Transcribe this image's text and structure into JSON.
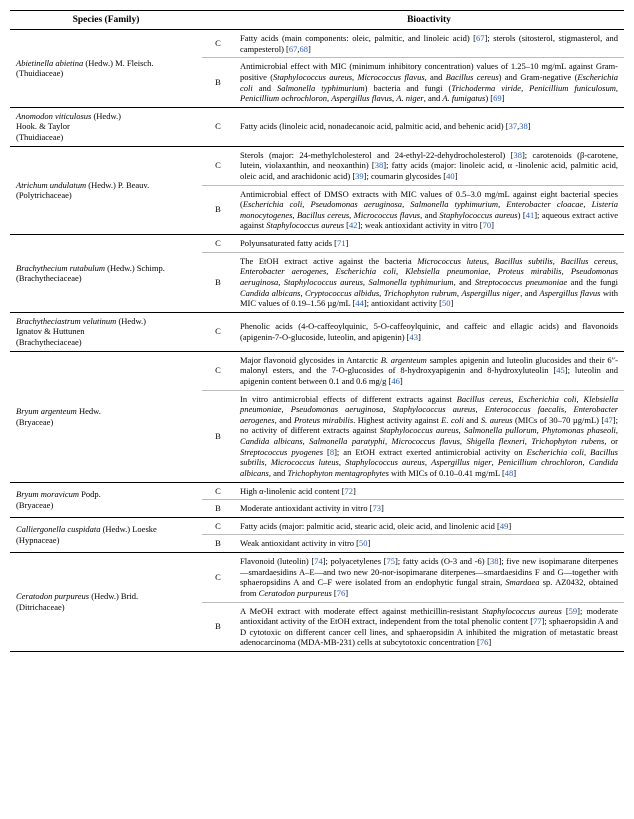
{
  "columns": {
    "species": "Species (Family)",
    "bioactivity": "Bioactivity"
  },
  "species": [
    {
      "name_html": "<span class='ital'>Abietinella abietina</span> <span class='auth'>(Hedw.) M. Fleisch.</span><br><span class='fam'>(Thuidiaceae)</span>",
      "rows": [
        {
          "type": "C",
          "text_html": "Fatty acids (main components: oleic, palmitic, and linoleic acid) [<span class='ref'>67</span>]; sterols (sitosterol, stigmasterol, and campesterol) [<span class='ref'>67</span>,<span class='ref'>68</span>]"
        },
        {
          "type": "B",
          "text_html": "Antimicrobial effect with MIC (minimum inhibitory concentration) values of 1.25–10 mg/mL against Gram-positive (<span class='ital'>Staphylococcus aureus</span>, <span class='ital'>Micrococcus flavus</span>, and <span class='ital'>Bacillus cereus</span>) and Gram-negative (<span class='ital'>Escherichia coli</span> and <span class='ital'>Salmonella typhimurium</span>) bacteria and fungi (<span class='ital'>Trichoderma viride</span>, <span class='ital'>Penicillium funiculosum</span>, <span class='ital'>Penicillium ochrochloron</span>, <span class='ital'>Aspergillus flavus</span>, <span class='ital'>A. niger</span>, and <span class='ital'>A. fumigatus</span>) [<span class='ref'>69</span>]"
        }
      ]
    },
    {
      "name_html": "<span class='ital'>Anomodon viticulosus</span> <span class='auth'>(Hedw.)<br>Hook. &amp; Taylor</span><br><span class='fam'>(Thuidiaceae)</span>",
      "rows": [
        {
          "type": "C",
          "text_html": "Fatty acids (linoleic acid, nonadecanoic acid, palmitic acid, and behenic acid) [<span class='ref'>37</span>,<span class='ref'>38</span>]"
        }
      ]
    },
    {
      "name_html": "<span class='ital'>Atrichum undulatum</span> <span class='auth'>(Hedw.) P. Beauv.</span><br><span class='fam'>(Polytrichaceae)</span>",
      "rows": [
        {
          "type": "C",
          "text_html": "Sterols (major: 24-methylcholesterol and 24-ethyl-22-dehydrocholesterol) [<span class='ref'>38</span>]; carotenoids (β-carotene, lutein, violaxanthin, and neoxanthin) [<span class='ref'>38</span>]; fatty acids (major: linoleic acid, α -linolenic acid, palmitic acid, oleic acid, and arachidonic acid) [<span class='ref'>39</span>]; coumarin glycosides [<span class='ref'>40</span>]"
        },
        {
          "type": "B",
          "text_html": "Antimicrobial effect of DMSO extracts with MIC values of 0.5–3.0 mg/mL against eight bacterial species (<span class='ital'>Escherichia coli</span>, <span class='ital'>Pseudomonas aeruginosa</span>, <span class='ital'>Salmonella typhimurium</span>, <span class='ital'>Enterobacter cloacae</span>, <span class='ital'>Listeria monocytogenes</span>, <span class='ital'>Bacillus cereus</span>, <span class='ital'>Micrococcus flavus</span>, and <span class='ital'>Staphylococcus aureus</span>) [<span class='ref'>41</span>]; aqueous extract active against <span class='ital'>Staphylococcus aureus</span> [<span class='ref'>42</span>]; weak antioxidant activity in vitro [<span class='ref'>70</span>]"
        }
      ]
    },
    {
      "name_html": "<span class='ital'>Brachythecium rutabulum</span> <span class='auth'>(Hedw.) Schimp.</span><br><span class='fam'>(Brachytheciaceae)</span>",
      "rows": [
        {
          "type": "C",
          "text_html": "Polyunsaturated fatty acids [<span class='ref'>71</span>]"
        },
        {
          "type": "B",
          "text_html": "The EtOH extract active against the bacteria <span class='ital'>Micrococcus luteus</span>, <span class='ital'>Bacillus subtilis</span>, <span class='ital'>Bacillus cereus</span>, <span class='ital'>Enterobacter aerogenes</span>, <span class='ital'>Escherichia coli</span>, <span class='ital'>Klebsiella pneumoniae</span>, <span class='ital'>Proteus mirabilis</span>, <span class='ital'>Pseudomonas aeruginosa</span>, <span class='ital'>Staphylococcus aureus</span>, <span class='ital'>Salmonella typhimurium</span>, and <span class='ital'>Streptococcus pneumoniae</span> and the fungi <span class='ital'>Candida albicans</span>, <span class='ital'>Cryptococcus albidus</span>, <span class='ital'>Trichophyton rubrum</span>, <span class='ital'>Aspergillus niger</span>, and <span class='ital'>Aspergillus flavus</span> with MIC values of 0.19–1.56 µg/mL [<span class='ref'>44</span>]; antioxidant activity [<span class='ref'>50</span>]"
        }
      ]
    },
    {
      "name_html": "<span class='ital'>Brachytheciastrum velutinum</span> <span class='auth'>(Hedw.)<br>Ignatov &amp; Huttunen</span><br><span class='fam'>(Brachytheciaceae)</span>",
      "rows": [
        {
          "type": "C",
          "text_html": "Phenolic acids (4-O-caffeoylquinic, 5-O-caffeoylquinic, and caffeic and ellagic acids) and flavonoids (apigenin-7-O-glucoside, luteolin, and apigenin) [<span class='ref'>43</span>]"
        }
      ]
    },
    {
      "name_html": "<span class='ital'>Bryum argenteum</span> <span class='auth'>Hedw.</span><br><span class='fam'>(Bryaceae)</span>",
      "rows": [
        {
          "type": "C",
          "text_html": "Major flavonoid glycosides in Antarctic <span class='ital'>B. argenteum</span> samples apigenin and luteolin glucosides and their 6″-malonyl esters, and the 7-O-glucosides of 8-hydroxyapigenin and 8-hydroxyluteolin [<span class='ref'>45</span>]; luteolin and apigenin content between 0.1 and 0.6 mg/g [<span class='ref'>46</span>]"
        },
        {
          "type": "B",
          "text_html": "In vitro antimicrobial effects of different extracts against <span class='ital'>Bacillus cereus</span>, <span class='ital'>Escherichia coli</span>, <span class='ital'>Klebsiella pneumoniae</span>, <span class='ital'>Pseudomonas aeruginosa</span>, <span class='ital'>Staphylococcus aureus</span>, <span class='ital'>Enterococcus faecalis</span>, <span class='ital'>Enterobacter aerogenes</span>, and <span class='ital'>Proteus mirabilis</span>. Highest activity against <span class='ital'>E. coli</span> and <span class='ital'>S. aureus</span> (MICs of 30–70 µg/mL) [<span class='ref'>47</span>]; no activity of different extracts against <span class='ital'>Staphylococcus aureus</span>, <span class='ital'>Salmonella pullorum</span>, <span class='ital'>Phytomonas phaseoli</span>, <span class='ital'>Candida albicans</span>, <span class='ital'>Salmonella paratyphi</span>, <span class='ital'>Micrococcus flavus</span>, <span class='ital'>Shigella flexneri</span>, <span class='ital'>Trichophyton rubens</span>, or <span class='ital'>Streptococcus pyogenes</span> [<span class='ref'>8</span>]; an EtOH extract exerted antimicrobial activity on <span class='ital'>Escherichia coli</span>, <span class='ital'>Bacillus subtilis</span>, <span class='ital'>Micrococcus luteus</span>, <span class='ital'>Staphylococcus aureus</span>, <span class='ital'>Aspergillus niger</span>, <span class='ital'>Penicillium chrochloron</span>, <span class='ital'>Candida albicans</span>, and <span class='ital'>Trichophyton mentagrophytes</span> with MICs of 0.10–0.41 mg/mL [<span class='ref'>48</span>]"
        }
      ]
    },
    {
      "name_html": "<span class='ital'>Bryum moravicum</span> <span class='auth'>Podp.</span><br><span class='fam'>(Bryaceae)</span>",
      "rows": [
        {
          "type": "C",
          "text_html": "High α-linolenic acid content [<span class='ref'>72</span>]"
        },
        {
          "type": "B",
          "text_html": "Moderate antioxidant activity in vitro [<span class='ref'>73</span>]"
        }
      ]
    },
    {
      "name_html": "<span class='ital'>Calliergonella cuspidata</span> <span class='auth'>(Hedw.) Loeske</span><br><span class='fam'>(Hypnaceae)</span>",
      "rows": [
        {
          "type": "C",
          "text_html": "Fatty acids (major: palmitic acid, stearic acid, oleic acid, and linolenic acid [<span class='ref'>49</span>]"
        },
        {
          "type": "B",
          "text_html": "Weak antioxidant activity in vitro [<span class='ref'>50</span>]"
        }
      ]
    },
    {
      "name_html": "<span class='ital'>Ceratodon purpureus</span> <span class='auth'>(Hedw.) Brid.</span><br><span class='fam'>(Ditrichaceae)</span>",
      "rows": [
        {
          "type": "C",
          "text_html": "Flavonoid (luteolin) [<span class='ref'>74</span>]; polyacetylenes [<span class='ref'>75</span>]; fatty acids (O-3 and -6) [<span class='ref'>38</span>]; five new isopimarane diterpenes—smardaesidins A–E—and two new 20-nor-isopimarane diterpenes—smardaesidins F and G—together with sphaeropsidins A and C–F were isolated from an endophytic fungal strain, <span class='ital'>Smardaea</span> sp. AZ0432, obtained from <span class='ital'>Ceratodon purpureus</span> [<span class='ref'>76</span>]"
        },
        {
          "type": "B",
          "text_html": "A MeOH extract with moderate effect against methicillin-resistant <span class='ital'>Staphylococcus aureus</span> [<span class='ref'>59</span>]; moderate antioxidant activity of the EtOH extract, independent from the total phenolic content [<span class='ref'>77</span>]; sphaeropsidin A and D cytotoxic on different cancer cell lines, and sphaeropsidin A inhibited the migration of metastatic breast adenocarcinoma (MDA-MB-231) cells at subcytotoxic concentration [<span class='ref'>76</span>]"
        }
      ]
    }
  ]
}
